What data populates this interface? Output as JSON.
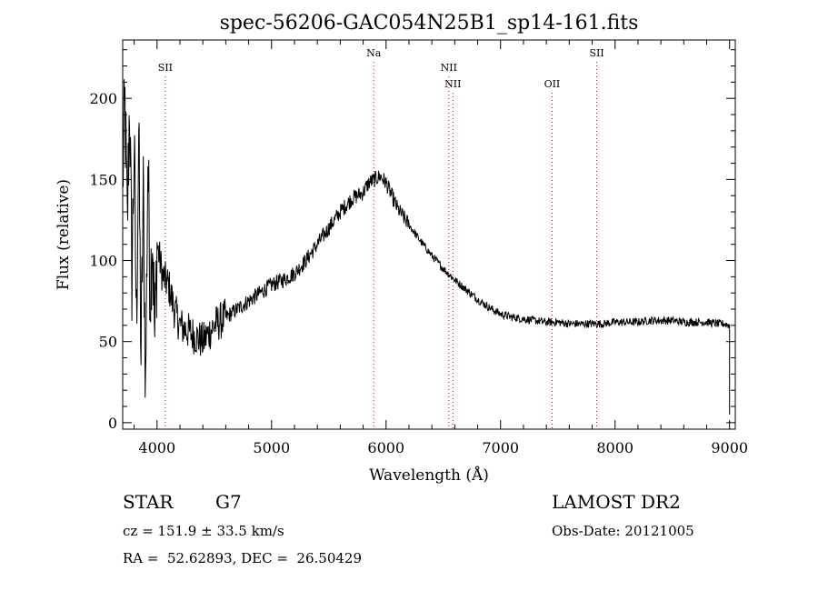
{
  "chart_data": {
    "type": "line",
    "title": "spec-56206-GAC054N25B1_sp14-161.fits",
    "xlabel": "Wavelength (Å)",
    "ylabel": "Flux (relative)",
    "xlim": [
      3700,
      9050
    ],
    "ylim": [
      -4,
      236
    ],
    "xticks": [
      4000,
      5000,
      6000,
      7000,
      8000,
      9000
    ],
    "yticks": [
      0,
      50,
      100,
      150,
      200
    ],
    "grid": false,
    "series": [
      {
        "x": [
          3700,
          3720,
          3740,
          3760,
          3780,
          3800,
          3820,
          3840,
          3860,
          3880,
          3900,
          3920,
          3940,
          3960,
          3980,
          4000,
          4050,
          4100,
          4150,
          4200,
          4300,
          4400,
          4500,
          4600,
          4700,
          4800,
          4900,
          5000,
          5100,
          5200,
          5300,
          5400,
          5500,
          5600,
          5700,
          5800,
          5850,
          5900,
          5950,
          6000,
          6050,
          6100,
          6200,
          6300,
          6400,
          6500,
          6600,
          6700,
          6800,
          6900,
          7000,
          7100,
          7200,
          7300,
          7400,
          7500,
          7600,
          7700,
          7800,
          7900,
          8000,
          8100,
          8200,
          8300,
          8400,
          8500,
          8600,
          8700,
          8800,
          8900,
          8950,
          9000
        ],
        "y": [
          150,
          195,
          120,
          200,
          90,
          170,
          60,
          180,
          40,
          140,
          20,
          165,
          80,
          120,
          50,
          110,
          90,
          85,
          70,
          60,
          55,
          50,
          60,
          65,
          70,
          75,
          80,
          85,
          88,
          92,
          100,
          110,
          120,
          130,
          138,
          142,
          148,
          150,
          152,
          148,
          140,
          132,
          122,
          112,
          103,
          95,
          88,
          82,
          76,
          71,
          67,
          65,
          64,
          63,
          62,
          62,
          61,
          61,
          61,
          61,
          62,
          62,
          62,
          63,
          63,
          63,
          62,
          62,
          62,
          61,
          61,
          60
        ]
      }
    ],
    "emission_lines": [
      {
        "label": "SII",
        "x": 4072,
        "row": 1
      },
      {
        "label": "Na",
        "x": 5893,
        "row": 0
      },
      {
        "label": "NII",
        "x": 6548,
        "row": 1
      },
      {
        "label": "NII",
        "x": 6584,
        "row": 2
      },
      {
        "label": "OII",
        "x": 7450,
        "row": 2
      },
      {
        "label": "SII",
        "x": 7840,
        "row": 0
      }
    ],
    "colors": {
      "spectrum": "#000000",
      "line_markers": "#cc0000",
      "axes": "#000000"
    }
  },
  "info": {
    "object_class": "STAR",
    "subclass": "G7",
    "survey": "LAMOST DR2",
    "cz": "cz = 151.9 ± 33.5 km/s",
    "obs_date": "Obs-Date: 20121005",
    "coords": "RA =  52.62893, DEC =  26.50429"
  }
}
